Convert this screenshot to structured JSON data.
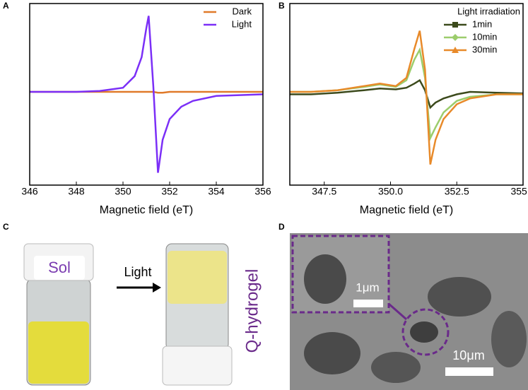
{
  "panel_labels": [
    "A",
    "B",
    "C",
    "D"
  ],
  "chart_data": [
    {
      "type": "line",
      "x_label": "Magnetic field (eT)",
      "x": [
        346,
        348,
        349,
        350,
        350.5,
        350.8,
        351.0,
        351.1,
        351.3,
        351.5,
        351.7,
        352,
        352.5,
        353,
        354,
        356
      ],
      "series": [
        {
          "name": "Dark",
          "color": "#e07a2a",
          "values": [
            0.03,
            0.03,
            0.03,
            0.03,
            0.03,
            0.03,
            0.03,
            0.03,
            0.03,
            0.02,
            0.02,
            0.03,
            0.03,
            0.03,
            0.03,
            0.03
          ]
        },
        {
          "name": "Light",
          "color": "#7b2ff7",
          "values": [
            0.03,
            0.03,
            0.04,
            0.08,
            0.22,
            0.45,
            0.8,
            0.95,
            0.1,
            -0.95,
            -0.55,
            -0.3,
            -0.15,
            -0.08,
            -0.02,
            0.0
          ]
        }
      ],
      "xlim": [
        346,
        356
      ],
      "xticks": [
        346,
        348,
        350,
        352,
        354,
        356
      ],
      "ylim": [
        -1.1,
        1.1
      ],
      "grid": false,
      "legend": "upper right"
    },
    {
      "type": "line",
      "x_label": "Magnetic field (eT)",
      "legend_title": "Light irradiation",
      "x": [
        346.2,
        347,
        348,
        349,
        349.6,
        350.2,
        350.6,
        350.9,
        351.1,
        351.3,
        351.5,
        351.7,
        352,
        352.5,
        353,
        354,
        355
      ],
      "series": [
        {
          "name": "1min",
          "color": "#3c4a1c",
          "marker": "square",
          "values": [
            0.0,
            0.0,
            0.02,
            0.05,
            0.07,
            0.06,
            0.08,
            0.13,
            0.17,
            0.05,
            -0.16,
            -0.1,
            -0.05,
            0.0,
            0.03,
            0.02,
            0.01
          ]
        },
        {
          "name": "10min",
          "color": "#9ccd6c",
          "marker": "diamond",
          "values": [
            0.03,
            0.03,
            0.05,
            0.09,
            0.12,
            0.09,
            0.17,
            0.42,
            0.54,
            0.2,
            -0.53,
            -0.4,
            -0.22,
            -0.08,
            -0.03,
            0.0,
            0.0
          ]
        },
        {
          "name": "30min",
          "color": "#e88a2a",
          "marker": "triangle",
          "values": [
            0.03,
            0.03,
            0.05,
            0.1,
            0.13,
            0.1,
            0.2,
            0.55,
            0.77,
            0.3,
            -0.85,
            -0.55,
            -0.3,
            -0.12,
            -0.05,
            0.0,
            0.0
          ]
        }
      ],
      "xlim": [
        346.2,
        355
      ],
      "xticks": [
        347.5,
        {
          "value": 350,
          "label": "350.0"
        },
        352.5,
        {
          "value": 355,
          "label": "355.0"
        }
      ],
      "ylim": [
        -1.1,
        1.1
      ],
      "grid": false,
      "legend": "upper right"
    }
  ],
  "photo_c": {
    "sample_label": "Sol",
    "arrow_label": "Light",
    "product_label": "Q-hydrogel"
  },
  "photo_d": {
    "inset_scale": "1μm",
    "main_scale": "10μm"
  }
}
